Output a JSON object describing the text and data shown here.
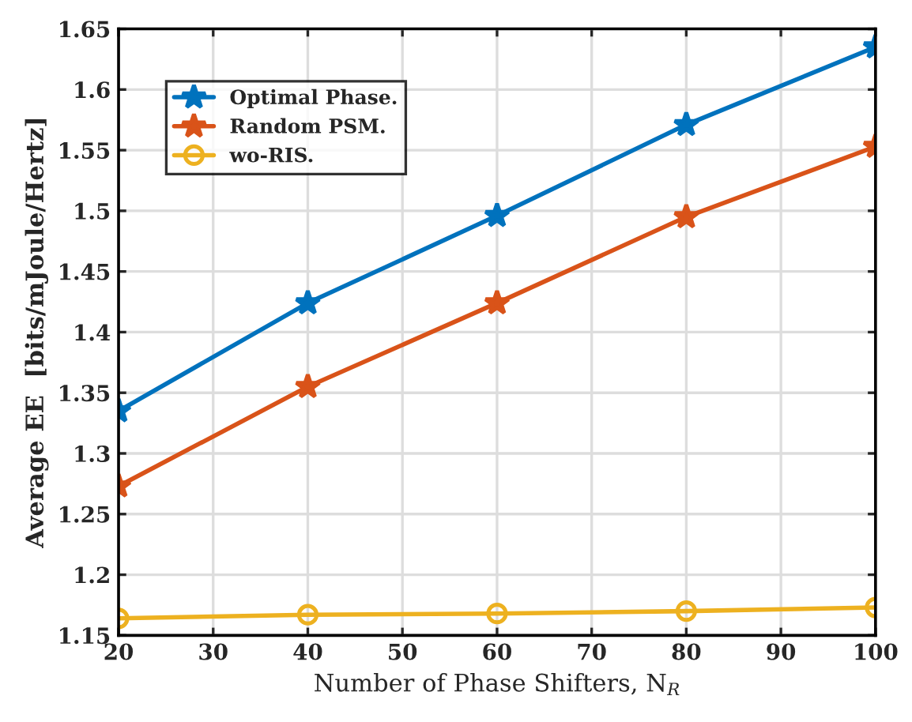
{
  "chart_data": {
    "type": "line",
    "xlabel": "Number of Phase Shifters, N$_{R}$",
    "ylabel": "Average EE  [bits/mJoule/Hertz]",
    "x": [
      20,
      40,
      60,
      80,
      100
    ],
    "series": [
      {
        "name": "Optimal Phase.",
        "color": "#0072bd",
        "marker": "star",
        "values": [
          1.335,
          1.424,
          1.496,
          1.571,
          1.635
        ]
      },
      {
        "name": "Random PSM.",
        "color": "#d95319",
        "marker": "star",
        "values": [
          1.273,
          1.355,
          1.424,
          1.495,
          1.553
        ]
      },
      {
        "name": "wo-RIS.",
        "color": "#edb120",
        "marker": "circle",
        "values": [
          1.164,
          1.167,
          1.168,
          1.17,
          1.173
        ]
      }
    ],
    "xlim": [
      20,
      100
    ],
    "xticks": [
      20,
      30,
      40,
      50,
      60,
      70,
      80,
      90,
      100
    ],
    "ylim": [
      1.15,
      1.65
    ],
    "yticks": [
      1.15,
      1.2,
      1.25,
      1.3,
      1.35,
      1.4,
      1.45,
      1.5,
      1.55,
      1.6,
      1.65
    ],
    "grid": true,
    "legend": "top left",
    "line_style": "solid"
  }
}
